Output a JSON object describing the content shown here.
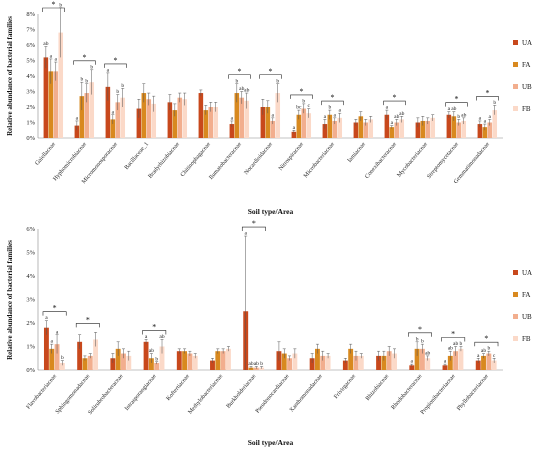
{
  "colors": {
    "UA": "#c8481c",
    "FA": "#d8891f",
    "UB": "#f2ae8e",
    "FB": "#fbd9c8"
  },
  "chart_data": [
    {
      "type": "bar",
      "ylabel": "Relative abundance of bacterial families",
      "xlabel": "Soil type/Area",
      "ylim": [
        0,
        8
      ],
      "yticks": [
        "0%",
        "1%",
        "2%",
        "3%",
        "4%",
        "5%",
        "6%",
        "7%",
        "8%"
      ],
      "legend": [
        "UA",
        "FA",
        "UB",
        "FB"
      ],
      "categories": [
        "Gaiellaceae",
        "Hyphomicrobiaceae",
        "Micromonosporaceae",
        "Bacillaceae_1",
        "Bradyrhizobiaceae",
        "Chitinophagaceae",
        "Ilumatobacteraceae",
        "Nocardioidaceae",
        "Nitrospiraceae",
        "Microbacteriaceae",
        "Iamiaceae",
        "Conexibacteraceae",
        "Mycobacteriaceae",
        "Streptomycetaceae",
        "Gemmatimonadaceae"
      ],
      "series": [
        {
          "name": "UA",
          "values": [
            5.2,
            0.8,
            3.3,
            1.9,
            2.3,
            2.9,
            0.9,
            2.0,
            0.4,
            0.9,
            1.0,
            1.5,
            1.0,
            1.5,
            0.9
          ]
        },
        {
          "name": "FA",
          "values": [
            4.3,
            2.7,
            1.2,
            2.9,
            1.8,
            1.8,
            2.9,
            2.0,
            1.5,
            1.5,
            1.4,
            0.7,
            1.1,
            1.4,
            0.7
          ]
        },
        {
          "name": "UB",
          "values": [
            4.3,
            2.9,
            2.3,
            2.5,
            2.6,
            2.0,
            2.6,
            1.1,
            1.9,
            1.1,
            1.0,
            1.0,
            1.1,
            1.0,
            1.0
          ]
        },
        {
          "name": "FB",
          "values": [
            6.8,
            3.6,
            2.6,
            2.2,
            2.5,
            2.0,
            2.4,
            2.9,
            1.6,
            1.3,
            1.2,
            1.2,
            1.3,
            1.1,
            1.8
          ]
        }
      ],
      "errors": [
        [
          0.7,
          0.3,
          0.9,
          0.6,
          0.5,
          0.2,
          0.2,
          0.5,
          0.1,
          0.3,
          0.2,
          0.3,
          0.3,
          0.2,
          0.2
        ],
        [
          0.8,
          0.9,
          0.3,
          0.6,
          0.4,
          0.3,
          0.6,
          0.4,
          0.3,
          0.3,
          0.3,
          0.1,
          0.3,
          0.3,
          0.2
        ],
        [
          0.6,
          0.6,
          0.5,
          0.4,
          0.3,
          0.3,
          0.4,
          0.2,
          0.3,
          0.2,
          0.2,
          0.2,
          0.2,
          0.2,
          0.2
        ],
        [
          1.6,
          0.8,
          0.6,
          0.5,
          0.4,
          0.3,
          0.5,
          0.6,
          0.3,
          0.3,
          0.2,
          0.2,
          0.2,
          0.2,
          0.3
        ]
      ],
      "letters": [
        [
          "ab",
          "a",
          "a",
          "",
          "",
          "",
          "a",
          "",
          "a",
          "a",
          "",
          "a",
          "",
          "a",
          "a"
        ],
        [
          "a",
          "b",
          "a",
          "",
          "",
          "",
          "b",
          "",
          "bc",
          "b",
          "",
          "a",
          "",
          "ab",
          "a"
        ],
        [
          "a",
          "b",
          "b",
          "",
          "",
          "",
          "ab",
          "a",
          "b",
          "a",
          "",
          "ab",
          "",
          "b",
          "a"
        ],
        [
          "b",
          "b",
          "b",
          "",
          "",
          "",
          "ab",
          "b",
          "c",
          "a",
          "",
          "ab",
          "",
          "ab",
          "b"
        ]
      ],
      "significance": [
        {
          "from": 0,
          "to": 0
        },
        {
          "from": 1,
          "to": 1
        },
        {
          "from": 2,
          "to": 2
        },
        {
          "from": 6,
          "to": 6
        },
        {
          "from": 7,
          "to": 7
        },
        {
          "from": 8,
          "to": 8
        },
        {
          "from": 9,
          "to": 9
        },
        {
          "from": 11,
          "to": 11
        },
        {
          "from": 13,
          "to": 13
        },
        {
          "from": 14,
          "to": 14
        }
      ],
      "significance_label": "*"
    },
    {
      "type": "bar",
      "ylabel": "Relative abundance of bacterial families",
      "xlabel": "Soil type/Area",
      "ylim": [
        0,
        6
      ],
      "yticks": [
        "0%",
        "1%",
        "2%",
        "3%",
        "4%",
        "5%",
        "6%"
      ],
      "legend": [
        "UA",
        "FA",
        "UB",
        "FB"
      ],
      "categories": [
        "Flavobacteriaceae",
        "Sphingomonadaceae",
        "Solirubrobacteraceae",
        "Intrasporangiaceae",
        "Koftertiaceae",
        "Methylobacteriaceae",
        "Burkholderiaceae",
        "Pseudonocardiaceae",
        "Xanthomonadaceae",
        "Frivirgaceae",
        "Rhizobiaceae",
        "Rhodobacteraceae",
        "Propionibacteriaceae",
        "Phyllobacteriaceae"
      ],
      "series": [
        {
          "name": "UA",
          "values": [
            1.8,
            1.2,
            0.5,
            1.2,
            0.8,
            0.4,
            2.5,
            0.8,
            0.5,
            0.4,
            0.6,
            0.2,
            0.2,
            0.4
          ]
        },
        {
          "name": "FA",
          "values": [
            0.9,
            0.5,
            0.9,
            0.5,
            0.8,
            0.8,
            0.1,
            0.7,
            0.9,
            0.9,
            0.6,
            0.9,
            0.6,
            0.6
          ]
        },
        {
          "name": "UB",
          "values": [
            1.1,
            0.6,
            0.7,
            0.3,
            0.7,
            0.8,
            0.1,
            0.5,
            0.6,
            0.6,
            0.8,
            0.9,
            0.8,
            0.7
          ]
        },
        {
          "name": "FB",
          "values": [
            0.3,
            1.3,
            0.6,
            1.0,
            0.6,
            0.9,
            0.1,
            0.7,
            0.6,
            0.6,
            0.7,
            0.5,
            0.9,
            0.4
          ]
        }
      ],
      "errors": [
        [
          0.3,
          0.3,
          0.2,
          0.1,
          0.1,
          0.1,
          3.2,
          0.4,
          0.2,
          0.1,
          0.2,
          0.05,
          0.05,
          0.1
        ],
        [
          0.2,
          0.1,
          0.3,
          0.2,
          0.1,
          0.1,
          0.05,
          0.2,
          0.2,
          0.2,
          0.2,
          0.3,
          0.2,
          0.1
        ],
        [
          0.4,
          0.1,
          0.2,
          0.05,
          0.1,
          0.1,
          0.05,
          0.1,
          0.2,
          0.2,
          0.2,
          0.2,
          0.2,
          0.1
        ],
        [
          0.1,
          0.3,
          0.2,
          0.3,
          0.1,
          0.1,
          0.05,
          0.2,
          0.1,
          0.1,
          0.2,
          0.1,
          0.1,
          0.1
        ]
      ],
      "letters": [
        [
          "a",
          "",
          "",
          "a",
          "",
          "",
          "a",
          "",
          "",
          "",
          "",
          "a",
          "a",
          "a"
        ],
        [
          "a",
          "",
          "",
          "ab",
          "",
          "",
          "ab",
          "",
          "",
          "",
          "",
          "b",
          "ab",
          "ab"
        ],
        [
          "a",
          "",
          "",
          "b",
          "",
          "",
          "ab",
          "",
          "",
          "",
          "",
          "b",
          "ab",
          "b"
        ],
        [
          "b",
          "",
          "",
          "ab",
          "",
          "",
          "b",
          "",
          "",
          "",
          "",
          "ab",
          "b",
          "c"
        ]
      ],
      "significance": [
        {
          "from": 0,
          "to": 0
        },
        {
          "from": 1,
          "to": 1
        },
        {
          "from": 3,
          "to": 3
        },
        {
          "from": 6,
          "to": 6
        },
        {
          "from": 11,
          "to": 11
        },
        {
          "from": 12,
          "to": 12
        },
        {
          "from": 13,
          "to": 13
        }
      ],
      "significance_label": "*"
    }
  ]
}
